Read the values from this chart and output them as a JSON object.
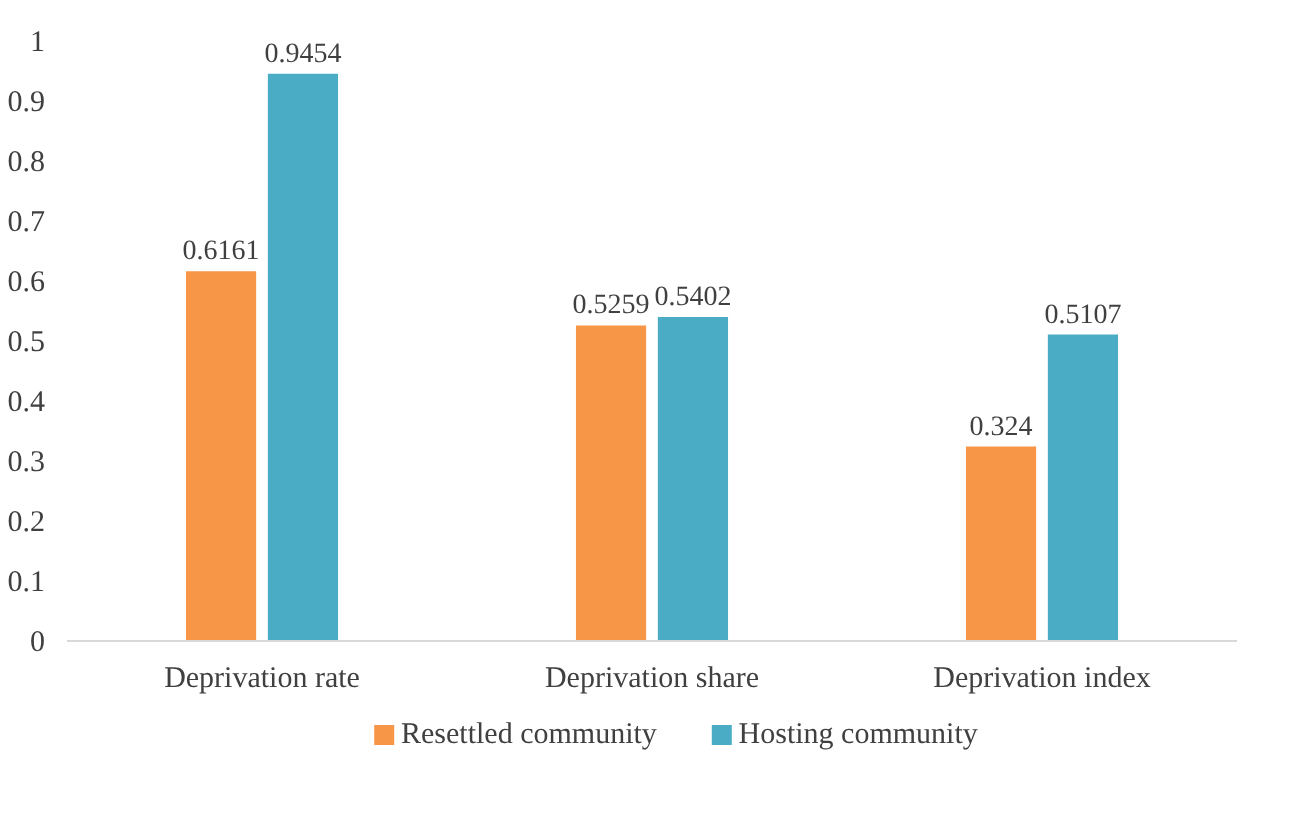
{
  "chart_data": {
    "type": "bar",
    "categories": [
      "Deprivation rate",
      "Deprivation share",
      "Deprivation index"
    ],
    "series": [
      {
        "name": "Resettled community",
        "color": "#f79646",
        "values": [
          0.6161,
          0.5259,
          0.324
        ]
      },
      {
        "name": "Hosting community",
        "color": "#4bacc6",
        "values": [
          0.9454,
          0.5402,
          0.5107
        ]
      }
    ],
    "ylim": [
      0,
      1
    ],
    "yticks": [
      0,
      {
        "value": 0.1,
        "label": "0.1"
      },
      {
        "value": 0.2,
        "label": "0.2"
      },
      {
        "value": 0.3,
        "label": "0.3"
      },
      {
        "value": 0.4,
        "label": "0.4"
      },
      {
        "value": 0.5,
        "label": "0.5"
      },
      {
        "value": 0.6,
        "label": "0.6"
      },
      {
        "value": 0.7,
        "label": "0.7"
      },
      {
        "value": 0.8,
        "label": "0.8"
      },
      {
        "value": 0.9,
        "label": "0.9"
      },
      1
    ],
    "data_labels": true,
    "grid": false,
    "legend": "bottom"
  }
}
